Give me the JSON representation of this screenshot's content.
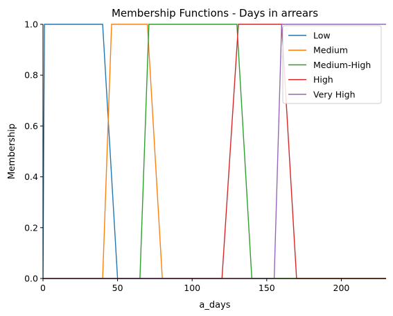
{
  "chart_data": {
    "type": "line",
    "title": "Membership Functions - Days in arrears",
    "xlabel": "a_days",
    "ylabel": "Membership",
    "xlim": [
      0,
      230
    ],
    "ylim": [
      0,
      1.0
    ],
    "xticks": [
      0,
      50,
      100,
      150,
      200
    ],
    "yticks": [
      0.0,
      0.2,
      0.4,
      0.6,
      0.8,
      1.0
    ],
    "grid": false,
    "legend_position": "top-right",
    "series": [
      {
        "name": "Low",
        "color": "#1f77b4",
        "x": [
          0,
          0,
          1,
          40,
          50,
          230
        ],
        "y": [
          0,
          0,
          1,
          1,
          0,
          0
        ]
      },
      {
        "name": "Medium",
        "color": "#ff7f0e",
        "x": [
          0,
          40,
          46,
          70,
          80,
          230
        ],
        "y": [
          0,
          0,
          1,
          1,
          0,
          0
        ]
      },
      {
        "name": "Medium-High",
        "color": "#2ca02c",
        "x": [
          0,
          65,
          71,
          130,
          140,
          230
        ],
        "y": [
          0,
          0,
          1,
          1,
          0,
          0
        ]
      },
      {
        "name": "High",
        "color": "#d62728",
        "x": [
          0,
          120,
          131,
          160,
          170,
          230
        ],
        "y": [
          0,
          0,
          1,
          1,
          0,
          0
        ]
      },
      {
        "name": "Very High",
        "color": "#9467bd",
        "x": [
          0,
          155,
          160,
          230
        ],
        "y": [
          0,
          0,
          1,
          1
        ]
      }
    ]
  }
}
